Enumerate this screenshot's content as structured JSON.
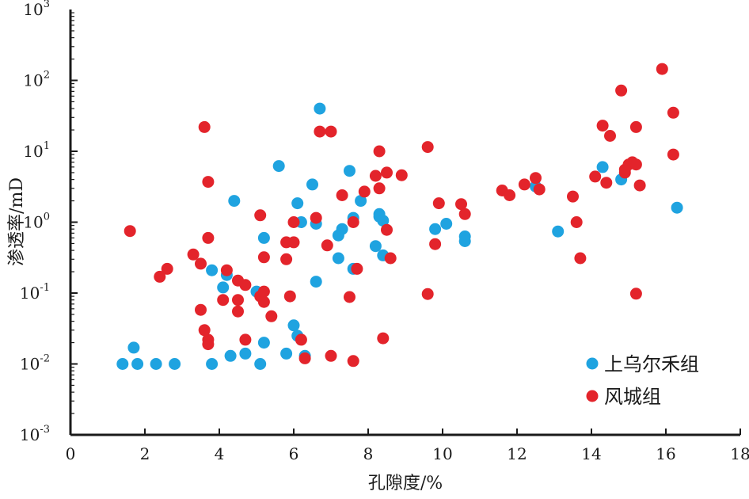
{
  "chart_data": {
    "type": "scatter",
    "xlabel": "孔隙度/%",
    "ylabel": "渗透率/mD",
    "xlim": [
      0,
      18
    ],
    "ylim": [
      0.001,
      1000
    ],
    "y_scale": "log",
    "x_ticks": [
      "0",
      "2",
      "4",
      "6",
      "8",
      "10",
      "12",
      "14",
      "16",
      "18"
    ],
    "y_ticks": [
      {
        "base": "10",
        "exp": "3"
      },
      {
        "base": "10",
        "exp": "2"
      },
      {
        "base": "10",
        "exp": "1"
      },
      {
        "base": "10",
        "exp": "0"
      },
      {
        "base": "10",
        "exp": "-1"
      },
      {
        "base": "10",
        "exp": "-2"
      },
      {
        "base": "10",
        "exp": "-3"
      }
    ],
    "grid": false,
    "legend_position": "bottom-right",
    "series": [
      {
        "name": "上乌尔禾组",
        "color": "#1fa3e0",
        "points": [
          [
            1.4,
            0.01
          ],
          [
            1.7,
            0.017
          ],
          [
            1.8,
            0.01
          ],
          [
            2.3,
            0.01
          ],
          [
            2.8,
            0.01
          ],
          [
            3.8,
            0.21
          ],
          [
            3.8,
            0.01
          ],
          [
            4.1,
            0.12
          ],
          [
            4.2,
            0.18
          ],
          [
            4.3,
            0.013
          ],
          [
            4.4,
            2.0
          ],
          [
            4.7,
            0.014
          ],
          [
            5.0,
            0.105
          ],
          [
            5.1,
            0.01
          ],
          [
            5.2,
            0.6
          ],
          [
            5.2,
            0.02
          ],
          [
            5.6,
            6.2
          ],
          [
            5.8,
            0.014
          ],
          [
            6.0,
            0.035
          ],
          [
            6.1,
            1.85
          ],
          [
            6.1,
            0.025
          ],
          [
            6.2,
            1.0
          ],
          [
            6.3,
            0.013
          ],
          [
            6.5,
            3.4
          ],
          [
            6.6,
            0.95
          ],
          [
            6.6,
            0.145
          ],
          [
            6.7,
            40
          ],
          [
            7.2,
            0.65
          ],
          [
            7.2,
            0.31
          ],
          [
            7.3,
            0.8
          ],
          [
            7.5,
            5.3
          ],
          [
            7.6,
            1.15
          ],
          [
            7.6,
            0.22
          ],
          [
            7.8,
            2.0
          ],
          [
            8.2,
            0.46
          ],
          [
            8.3,
            1.3
          ],
          [
            8.3,
            1.2
          ],
          [
            8.4,
            1.05
          ],
          [
            8.4,
            0.34
          ],
          [
            9.8,
            0.8
          ],
          [
            10.1,
            0.95
          ],
          [
            10.6,
            0.63
          ],
          [
            10.6,
            0.54
          ],
          [
            12.5,
            3.2
          ],
          [
            13.1,
            0.74
          ],
          [
            14.3,
            6.0
          ],
          [
            14.8,
            4.0
          ],
          [
            16.3,
            1.6
          ]
        ]
      },
      {
        "name": "风城组",
        "color": "#e3242b",
        "points": [
          [
            1.6,
            0.75
          ],
          [
            2.4,
            0.17
          ],
          [
            2.6,
            0.22
          ],
          [
            3.3,
            0.35
          ],
          [
            3.5,
            0.26
          ],
          [
            3.5,
            0.058
          ],
          [
            3.6,
            22
          ],
          [
            3.6,
            0.03
          ],
          [
            3.7,
            3.7
          ],
          [
            3.7,
            0.6
          ],
          [
            3.7,
            0.022
          ],
          [
            3.7,
            0.019
          ],
          [
            4.1,
            0.08
          ],
          [
            4.2,
            0.21
          ],
          [
            4.5,
            0.15
          ],
          [
            4.5,
            0.08
          ],
          [
            4.5,
            0.055
          ],
          [
            4.7,
            0.13
          ],
          [
            4.7,
            0.022
          ],
          [
            5.1,
            1.25
          ],
          [
            5.1,
            0.09
          ],
          [
            5.2,
            0.105
          ],
          [
            5.2,
            0.075
          ],
          [
            5.2,
            0.32
          ],
          [
            5.4,
            0.047
          ],
          [
            5.8,
            0.52
          ],
          [
            5.8,
            0.3
          ],
          [
            5.9,
            0.09
          ],
          [
            6.0,
            1.0
          ],
          [
            6.0,
            0.52
          ],
          [
            6.2,
            0.022
          ],
          [
            6.3,
            0.012
          ],
          [
            6.6,
            1.15
          ],
          [
            6.7,
            19
          ],
          [
            6.9,
            0.47
          ],
          [
            7.0,
            19
          ],
          [
            7.0,
            0.013
          ],
          [
            7.3,
            2.4
          ],
          [
            7.5,
            0.088
          ],
          [
            7.6,
            1.0
          ],
          [
            7.6,
            0.011
          ],
          [
            7.7,
            0.22
          ],
          [
            7.9,
            2.7
          ],
          [
            8.2,
            4.5
          ],
          [
            8.3,
            10
          ],
          [
            8.3,
            3.0
          ],
          [
            8.4,
            0.023
          ],
          [
            8.5,
            5.0
          ],
          [
            8.5,
            0.78
          ],
          [
            8.6,
            0.31
          ],
          [
            8.9,
            4.6
          ],
          [
            9.6,
            11.5
          ],
          [
            9.6,
            0.097
          ],
          [
            9.8,
            0.49
          ],
          [
            9.9,
            1.85
          ],
          [
            10.5,
            1.8
          ],
          [
            10.6,
            1.3
          ],
          [
            11.6,
            2.8
          ],
          [
            11.8,
            2.4
          ],
          [
            12.2,
            3.4
          ],
          [
            12.5,
            4.2
          ],
          [
            12.6,
            2.9
          ],
          [
            13.5,
            2.3
          ],
          [
            13.6,
            1.0
          ],
          [
            13.7,
            0.31
          ],
          [
            14.1,
            4.4
          ],
          [
            14.3,
            23
          ],
          [
            14.4,
            3.6
          ],
          [
            14.5,
            16.5
          ],
          [
            14.8,
            72
          ],
          [
            14.9,
            5.0
          ],
          [
            14.9,
            5.5
          ],
          [
            15.0,
            6.5
          ],
          [
            15.1,
            7.0
          ],
          [
            15.2,
            6.5
          ],
          [
            15.2,
            22
          ],
          [
            15.2,
            0.098
          ],
          [
            15.3,
            3.3
          ],
          [
            15.9,
            145
          ],
          [
            16.2,
            35
          ],
          [
            16.2,
            9.0
          ]
        ]
      }
    ]
  }
}
